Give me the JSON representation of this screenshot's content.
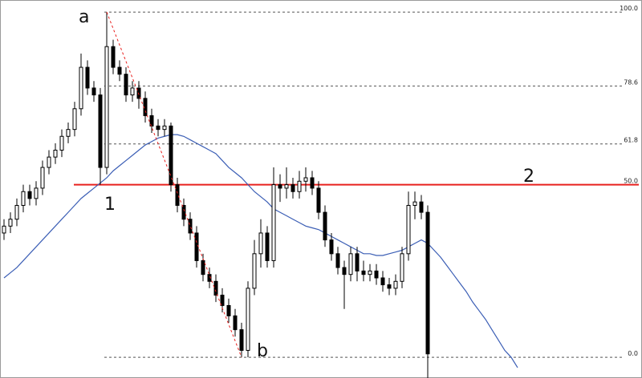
{
  "chart_data": {
    "type": "candlestick",
    "ylim": [
      -6,
      103.5
    ],
    "yticks": [
      {
        "value": 100,
        "label": "100.0"
      },
      {
        "value": 78.6,
        "label": "78.6"
      },
      {
        "value": 61.8,
        "label": "61.8"
      },
      {
        "value": 50,
        "label": "50.0"
      },
      {
        "value": 0,
        "label": "0.0"
      }
    ],
    "annotations": [
      "a",
      "b",
      "1",
      "2"
    ],
    "candles": {
      "open": [
        36,
        38,
        40,
        44,
        48,
        46,
        49,
        55,
        58,
        60,
        64,
        66,
        72,
        84,
        78,
        76,
        55,
        90,
        84,
        82,
        76,
        78,
        75,
        70,
        67,
        66,
        67,
        50,
        44,
        40,
        36,
        28,
        24,
        22,
        18,
        15,
        12,
        8,
        2,
        20,
        30,
        36,
        28,
        50,
        49,
        50,
        48,
        51,
        52,
        49,
        42,
        34,
        30,
        26,
        24,
        30,
        25,
        24,
        25,
        23,
        21,
        20,
        22,
        30,
        44,
        45,
        42
      ],
      "high": [
        40,
        42,
        46,
        50,
        50,
        51,
        57,
        60,
        62,
        66,
        68,
        74,
        88,
        86,
        80,
        78,
        100,
        92,
        86,
        84,
        80,
        80,
        77,
        72,
        69,
        69,
        68,
        52,
        46,
        42,
        38,
        30,
        26,
        24,
        20,
        17,
        14,
        10,
        22,
        34,
        40,
        38,
        55,
        53,
        55,
        52,
        54,
        55,
        54,
        51,
        44,
        36,
        32,
        28,
        32,
        32,
        28,
        27,
        27,
        25,
        23,
        24,
        32,
        48,
        48,
        47,
        44
      ],
      "low": [
        34,
        36,
        38,
        42,
        44,
        44,
        47,
        53,
        56,
        58,
        62,
        64,
        70,
        76,
        74,
        50,
        53,
        82,
        80,
        74,
        74,
        72,
        68,
        65,
        64,
        64,
        48,
        42,
        38,
        34,
        26,
        22,
        20,
        16,
        13,
        10,
        6,
        0,
        0,
        18,
        26,
        26,
        26,
        45,
        46,
        46,
        46,
        48,
        47,
        40,
        32,
        28,
        24,
        14,
        22,
        22,
        22,
        22,
        21,
        19,
        18,
        18,
        20,
        28,
        40,
        40,
        -6
      ],
      "close": [
        38,
        40,
        44,
        48,
        46,
        49,
        55,
        58,
        60,
        64,
        66,
        72,
        84,
        78,
        76,
        55,
        90,
        84,
        82,
        76,
        78,
        75,
        70,
        67,
        66,
        67,
        50,
        44,
        40,
        36,
        28,
        24,
        22,
        18,
        15,
        12,
        8,
        2,
        20,
        30,
        36,
        28,
        50,
        49,
        50,
        48,
        51,
        52,
        49,
        42,
        34,
        30,
        26,
        24,
        30,
        25,
        24,
        25,
        23,
        21,
        20,
        22,
        30,
        44,
        45,
        42,
        1
      ],
      "up_color": "#ffffff",
      "down_color": "#000000"
    },
    "ma": {
      "color": "#3b5eb5",
      "values": [
        23,
        24.5,
        26,
        28,
        30,
        32,
        34,
        36,
        38,
        40,
        42,
        44,
        46,
        47.5,
        49,
        50.5,
        52,
        54,
        55.5,
        57,
        58.5,
        60,
        61.5,
        62.5,
        63.5,
        64,
        64.5,
        64.5,
        64,
        63,
        62,
        61,
        60,
        59,
        57,
        55,
        53.5,
        52,
        50,
        48,
        46.5,
        45,
        43,
        42,
        41,
        40,
        39,
        38,
        37.5,
        37,
        36,
        35,
        34,
        33,
        32,
        31,
        30,
        30,
        29.5,
        29.5,
        30,
        30.5,
        31,
        32,
        33,
        34,
        33,
        31,
        29,
        26.5,
        24,
        21.5,
        19,
        16,
        13.5,
        11,
        8,
        5,
        2,
        0,
        -3
      ]
    },
    "level_color": "#e8201e"
  }
}
